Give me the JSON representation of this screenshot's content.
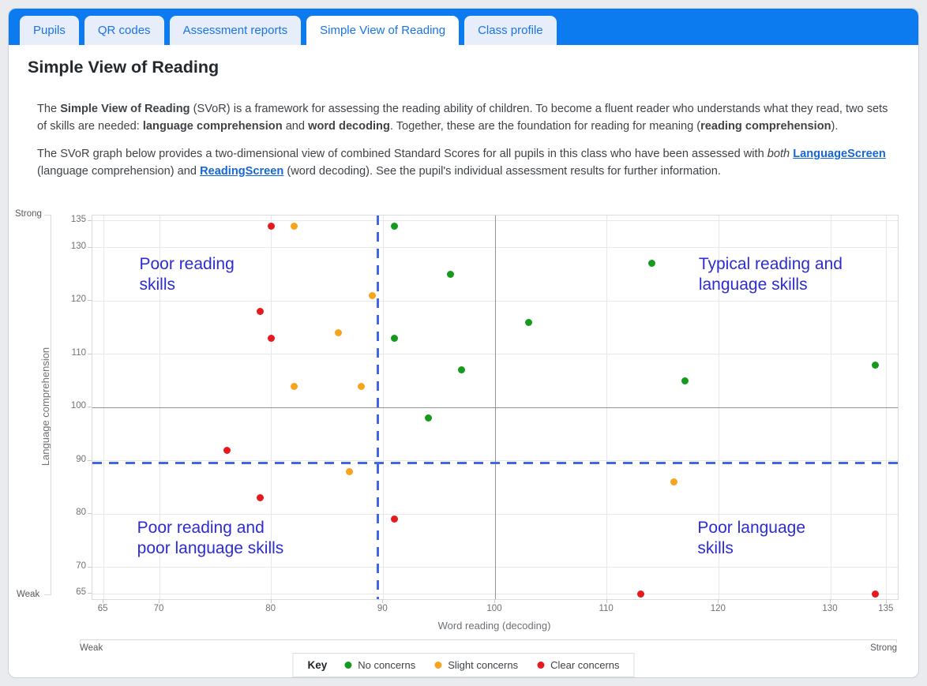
{
  "tabs": [
    {
      "label": "Pupils",
      "active": false
    },
    {
      "label": "QR codes",
      "active": false
    },
    {
      "label": "Assessment reports",
      "active": false
    },
    {
      "label": "Simple View of Reading",
      "active": true
    },
    {
      "label": "Class profile",
      "active": false
    }
  ],
  "page_title": "Simple View of Reading",
  "intro": {
    "p1": [
      {
        "t": "The "
      },
      {
        "t": "Simple View of Reading",
        "b": true
      },
      {
        "t": " (SVoR) is a framework for assessing the reading ability of children. To become a fluent reader who understands what they read, two sets of skills are needed: "
      },
      {
        "t": "language comprehension",
        "b": true
      },
      {
        "t": " and "
      },
      {
        "t": "word decoding",
        "b": true
      },
      {
        "t": ". Together, these are the foundation for reading for meaning ("
      },
      {
        "t": "reading comprehension",
        "b": true
      },
      {
        "t": ")."
      }
    ],
    "p2": [
      {
        "t": "The SVoR graph below provides a two-dimensional view of combined Standard Scores for all pupils in this class who have been assessed with "
      },
      {
        "t": "both",
        "i": true
      },
      {
        "t": " "
      },
      {
        "t": "LanguageScreen",
        "b": true,
        "link": true,
        "name": "languagescreen-link"
      },
      {
        "t": " (language comprehension) and "
      },
      {
        "t": "ReadingScreen",
        "b": true,
        "link": true,
        "name": "readingscreen-link"
      },
      {
        "t": " (word decoding). See the pupil's individual assessment results for further information."
      }
    ]
  },
  "chart_data": {
    "type": "scatter",
    "xlabel": "Word reading (decoding)",
    "ylabel": "Language comprehension",
    "xlim": [
      64,
      136
    ],
    "ylim": [
      64,
      136
    ],
    "x_ticks": [
      65,
      70,
      80,
      90,
      100,
      110,
      120,
      130,
      135
    ],
    "y_ticks": [
      65,
      70,
      80,
      90,
      100,
      110,
      120,
      130,
      135
    ],
    "grid": true,
    "mean_lines": {
      "x": 100,
      "y": 100
    },
    "threshold_lines": {
      "x": 89.5,
      "y": 89.5
    },
    "axis_strength_labels": {
      "y_top": "Strong",
      "y_bottom": "Weak",
      "x_left": "Weak",
      "x_right": "Strong"
    },
    "quadrant_labels": [
      {
        "lines": [
          "Poor reading",
          "skills"
        ],
        "x": 68.2,
        "y": 128.8
      },
      {
        "lines": [
          "Typical reading and",
          "language skills"
        ],
        "x": 118.2,
        "y": 128.8
      },
      {
        "lines": [
          "Poor reading and",
          "poor language skills"
        ],
        "x": 68.0,
        "y": 79.2
      },
      {
        "lines": [
          "Poor language",
          "skills"
        ],
        "x": 118.1,
        "y": 79.2
      }
    ],
    "series": [
      {
        "name": "No concerns",
        "color": "#169a1e",
        "points": [
          [
            91,
            134
          ],
          [
            96,
            125
          ],
          [
            114,
            127
          ],
          [
            103,
            116
          ],
          [
            91,
            113
          ],
          [
            97,
            107
          ],
          [
            117,
            105
          ],
          [
            94,
            98
          ],
          [
            134,
            108
          ]
        ]
      },
      {
        "name": "Slight concerns",
        "color": "#f6a41d",
        "points": [
          [
            82,
            134
          ],
          [
            89,
            121
          ],
          [
            86,
            114
          ],
          [
            82,
            104
          ],
          [
            88,
            104
          ],
          [
            87,
            88
          ],
          [
            116,
            86
          ]
        ]
      },
      {
        "name": "Clear concerns",
        "color": "#e61a1e",
        "points": [
          [
            80,
            134
          ],
          [
            79,
            118
          ],
          [
            80,
            113
          ],
          [
            76,
            92
          ],
          [
            79,
            83
          ],
          [
            91,
            79
          ],
          [
            113,
            65
          ],
          [
            134,
            65
          ]
        ]
      }
    ],
    "legend": {
      "title": "Key",
      "position": "bottom-center",
      "entries": [
        {
          "label": "No concerns",
          "color": "#169a1e"
        },
        {
          "label": "Slight concerns",
          "color": "#f6a41d"
        },
        {
          "label": "Clear concerns",
          "color": "#e61a1e"
        }
      ]
    }
  },
  "colors": {
    "header_blue": "#0d7bf0",
    "tab_text_blue": "#1a73e8",
    "quadrant_text_blue": "#2c2cd2",
    "threshold_line_blue": "#4465e6",
    "no_concerns_green": "#169a1e",
    "slight_concerns_orange": "#f6a41d",
    "clear_concerns_red": "#e61a1e"
  }
}
